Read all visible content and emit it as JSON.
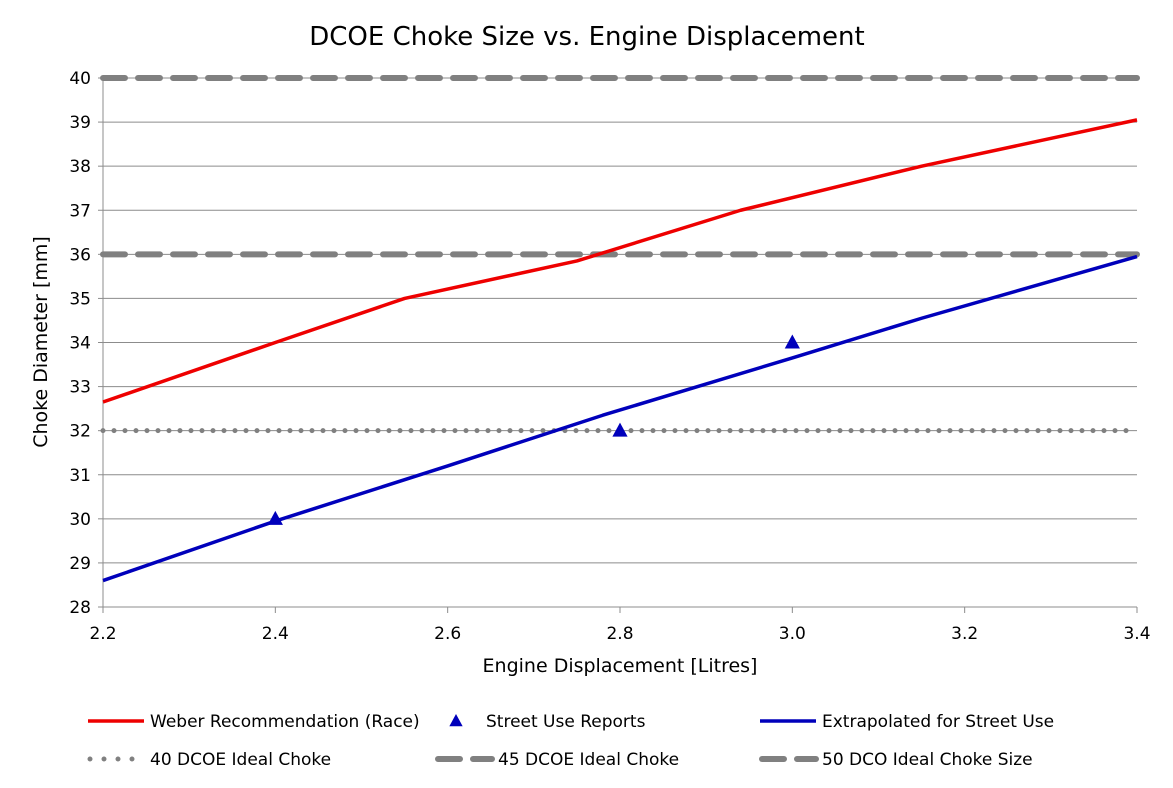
{
  "chart_data": {
    "type": "line",
    "title": "DCOE Choke Size vs. Engine Displacement",
    "xlabel": "Engine Displacement  [Litres]",
    "ylabel": "Choke Diameter [mm]",
    "xlim": [
      2.2,
      3.4
    ],
    "ylim": [
      28,
      40
    ],
    "x_ticks": [
      "2.2",
      "2.4",
      "2.6",
      "2.8",
      "3.0",
      "3.2",
      "3.4"
    ],
    "y_ticks": [
      "28",
      "29",
      "30",
      "31",
      "32",
      "33",
      "34",
      "35",
      "36",
      "37",
      "38",
      "39",
      "40"
    ],
    "grid": "horizontal",
    "legend_position": "bottom",
    "series": [
      {
        "name": "Weber Recommendation (Race)",
        "kind": "line",
        "color": "#ee0000",
        "points": [
          [
            2.2,
            32.65
          ],
          [
            2.4,
            34.0
          ],
          [
            2.55,
            35.0
          ],
          [
            2.75,
            35.85
          ],
          [
            2.94,
            37.0
          ],
          [
            3.15,
            38.0
          ],
          [
            3.4,
            39.05
          ]
        ]
      },
      {
        "name": "Street Use Reports",
        "kind": "marker",
        "marker": "triangle",
        "color": "#0000bb",
        "points": [
          [
            2.4,
            30.0
          ],
          [
            2.8,
            32.0
          ],
          [
            3.0,
            34.0
          ]
        ]
      },
      {
        "name": "Extrapolated for Street Use",
        "kind": "line",
        "color": "#0000bb",
        "points": [
          [
            2.2,
            28.6
          ],
          [
            2.4,
            29.95
          ],
          [
            2.6,
            31.2
          ],
          [
            2.78,
            32.35
          ],
          [
            3.0,
            33.65
          ],
          [
            3.15,
            34.55
          ],
          [
            3.4,
            35.95
          ]
        ]
      },
      {
        "name": "40 DCOE Ideal Choke",
        "kind": "hline",
        "style": "dotted",
        "color": "#808080",
        "value": 32
      },
      {
        "name": "45 DCOE Ideal Choke",
        "kind": "hline",
        "style": "dashed",
        "color": "#808080",
        "value": 36
      },
      {
        "name": "50 DCO Ideal Choke Size",
        "kind": "hline",
        "style": "dashed",
        "color": "#808080",
        "value": 40
      }
    ]
  }
}
